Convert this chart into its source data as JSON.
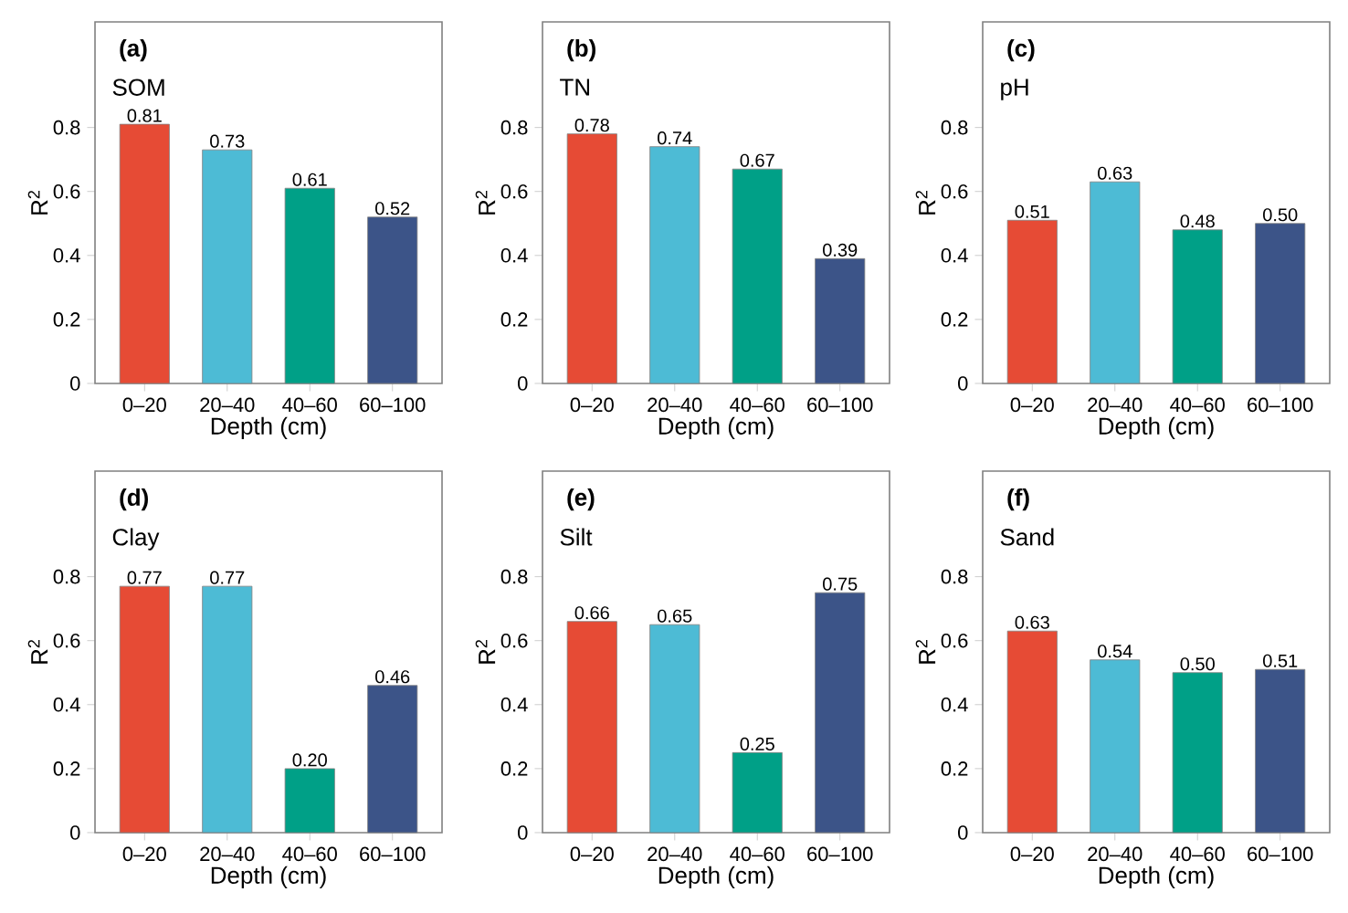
{
  "chart_data": [
    {
      "type": "bar",
      "title": "(a)",
      "subtitle": "SOM",
      "xlabel": "Depth (cm)",
      "ylabel": "R$^{2}$",
      "categories": [
        "0–20",
        "20–40",
        "40–60",
        "60–100"
      ],
      "values": [
        0.81,
        0.73,
        0.61,
        0.52
      ],
      "value_labels": [
        "0.81",
        "0.73",
        "0.61",
        "0.52"
      ],
      "colors": [
        "#e64b35",
        "#4dbbd5",
        "#00a087",
        "#3c5488"
      ],
      "ylim": [
        0,
        1.13
      ],
      "yticks": [
        0,
        0.2,
        0.4,
        0.6,
        0.8
      ]
    },
    {
      "type": "bar",
      "title": "(b)",
      "subtitle": "TN",
      "xlabel": "Depth (cm)",
      "ylabel": "R$^{2}$",
      "categories": [
        "0–20",
        "20–40",
        "40–60",
        "60–100"
      ],
      "values": [
        0.78,
        0.74,
        0.67,
        0.39
      ],
      "value_labels": [
        "0.78",
        "0.74",
        "0.67",
        "0.39"
      ],
      "colors": [
        "#e64b35",
        "#4dbbd5",
        "#00a087",
        "#3c5488"
      ],
      "ylim": [
        0,
        1.13
      ],
      "yticks": [
        0,
        0.2,
        0.4,
        0.6,
        0.8
      ]
    },
    {
      "type": "bar",
      "title": "(c)",
      "subtitle": "pH",
      "xlabel": "Depth (cm)",
      "ylabel": "R$^{2}$",
      "categories": [
        "0–20",
        "20–40",
        "40–60",
        "60–100"
      ],
      "values": [
        0.51,
        0.63,
        0.48,
        0.5
      ],
      "value_labels": [
        "0.51",
        "0.63",
        "0.48",
        "0.50"
      ],
      "colors": [
        "#e64b35",
        "#4dbbd5",
        "#00a087",
        "#3c5488"
      ],
      "ylim": [
        0,
        1.13
      ],
      "yticks": [
        0,
        0.2,
        0.4,
        0.6,
        0.8
      ]
    },
    {
      "type": "bar",
      "title": "(d)",
      "subtitle": "Clay",
      "xlabel": "Depth (cm)",
      "ylabel": "R$^{2}$",
      "categories": [
        "0–20",
        "20–40",
        "40–60",
        "60–100"
      ],
      "values": [
        0.77,
        0.77,
        0.2,
        0.46
      ],
      "value_labels": [
        "0.77",
        "0.77",
        "0.20",
        "0.46"
      ],
      "colors": [
        "#e64b35",
        "#4dbbd5",
        "#00a087",
        "#3c5488"
      ],
      "ylim": [
        0,
        1.13
      ],
      "yticks": [
        0,
        0.2,
        0.4,
        0.6,
        0.8
      ]
    },
    {
      "type": "bar",
      "title": "(e)",
      "subtitle": "Silt",
      "xlabel": "Depth (cm)",
      "ylabel": "R$^{2}$",
      "categories": [
        "0–20",
        "20–40",
        "40–60",
        "60–100"
      ],
      "values": [
        0.66,
        0.65,
        0.25,
        0.75
      ],
      "value_labels": [
        "0.66",
        "0.65",
        "0.25",
        "0.75"
      ],
      "colors": [
        "#e64b35",
        "#4dbbd5",
        "#00a087",
        "#3c5488"
      ],
      "ylim": [
        0,
        1.13
      ],
      "yticks": [
        0,
        0.2,
        0.4,
        0.6,
        0.8
      ]
    },
    {
      "type": "bar",
      "title": "(f)",
      "subtitle": "Sand",
      "xlabel": "Depth (cm)",
      "ylabel": "R$^{2}$",
      "categories": [
        "0–20",
        "20–40",
        "40–60",
        "60–100"
      ],
      "values": [
        0.63,
        0.54,
        0.5,
        0.51
      ],
      "value_labels": [
        "0.63",
        "0.54",
        "0.50",
        "0.51"
      ],
      "colors": [
        "#e64b35",
        "#4dbbd5",
        "#00a087",
        "#3c5488"
      ],
      "ylim": [
        0,
        1.13
      ],
      "yticks": [
        0,
        0.2,
        0.4,
        0.6,
        0.8
      ]
    }
  ]
}
